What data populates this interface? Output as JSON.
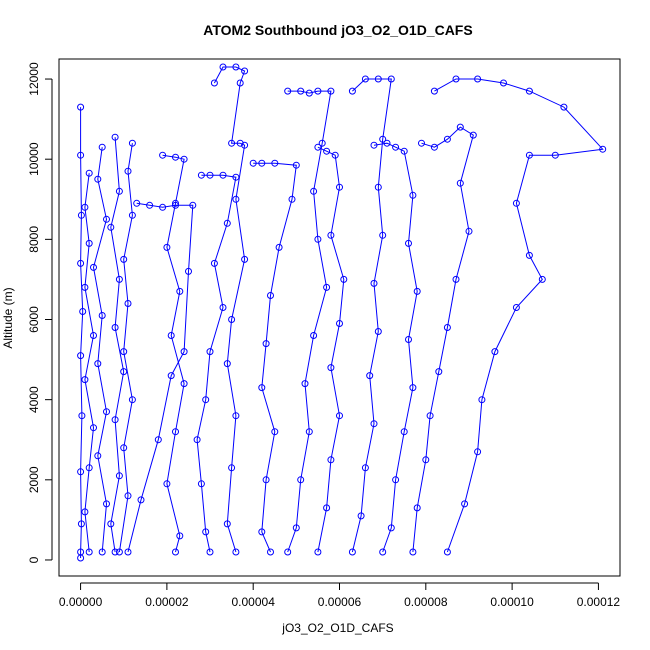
{
  "chart_data": {
    "type": "scatter",
    "title": "ATOM2 Southbound jO3_O2_O1D_CAFS",
    "xlabel": "jO3_O2_O1D_CAFS",
    "ylabel": "Altitude (m)",
    "xlim": [
      -5e-06,
      0.000125
    ],
    "ylim": [
      -400,
      12500
    ],
    "x_ticks": [
      0,
      2e-05,
      4e-05,
      6e-05,
      8e-05,
      0.0001,
      0.00012
    ],
    "x_tick_labels": [
      "0.00000",
      "0.00002",
      "0.00004",
      "0.00006",
      "0.00008",
      "0.00010",
      "0.00012"
    ],
    "y_ticks": [
      0,
      2000,
      4000,
      6000,
      8000,
      10000,
      12000
    ],
    "y_tick_labels": [
      "0",
      "2000",
      "4000",
      "6000",
      "8000",
      "10000",
      "12000"
    ],
    "marker": "open-circle",
    "color": "#0000ff",
    "series": [
      {
        "points": [
          [
            0.0,
            11300
          ],
          [
            0.0,
            10100
          ],
          [
            2e-07,
            8600
          ],
          [
            0.0,
            7400
          ],
          [
            5e-07,
            6200
          ],
          [
            0.0,
            5100
          ],
          [
            3e-07,
            3600
          ],
          [
            0.0,
            2200
          ],
          [
            2e-07,
            900
          ],
          [
            0.0,
            200
          ],
          [
            0.0,
            50
          ]
        ]
      },
      {
        "points": [
          [
            2e-06,
            9650
          ],
          [
            1e-06,
            8800
          ],
          [
            2e-06,
            7900
          ],
          [
            1e-06,
            6800
          ],
          [
            3e-06,
            5600
          ],
          [
            1e-06,
            4500
          ],
          [
            3e-06,
            3300
          ],
          [
            2e-06,
            2300
          ],
          [
            1e-06,
            1200
          ],
          [
            2e-06,
            200
          ]
        ]
      },
      {
        "points": [
          [
            5e-06,
            10300
          ],
          [
            4e-06,
            9500
          ],
          [
            6e-06,
            8500
          ],
          [
            3e-06,
            7300
          ],
          [
            5e-06,
            6100
          ],
          [
            4e-06,
            4900
          ],
          [
            6e-06,
            3700
          ],
          [
            4e-06,
            2600
          ],
          [
            6e-06,
            1400
          ],
          [
            5e-06,
            200
          ]
        ]
      },
      {
        "points": [
          [
            8e-06,
            10550
          ],
          [
            9e-06,
            9200
          ],
          [
            7e-06,
            8300
          ],
          [
            9e-06,
            7000
          ],
          [
            8e-06,
            5800
          ],
          [
            1e-05,
            4700
          ],
          [
            8e-06,
            3500
          ],
          [
            9e-06,
            2100
          ],
          [
            7e-06,
            900
          ],
          [
            8e-06,
            200
          ]
        ]
      },
      {
        "points": [
          [
            1.2e-05,
            10400
          ],
          [
            1.1e-05,
            9700
          ],
          [
            1.2e-05,
            8600
          ],
          [
            1e-05,
            7500
          ],
          [
            1.1e-05,
            6400
          ],
          [
            1e-05,
            5200
          ],
          [
            1.2e-05,
            4000
          ],
          [
            1e-05,
            2800
          ],
          [
            1.1e-05,
            1600
          ],
          [
            9e-06,
            200
          ]
        ]
      },
      {
        "points": [
          [
            1.3e-05,
            8900
          ],
          [
            1.6e-05,
            8850
          ],
          [
            1.9e-05,
            8800
          ],
          [
            2.2e-05,
            8850
          ],
          [
            2.6e-05,
            8850
          ],
          [
            2.5e-05,
            7200
          ],
          [
            2.4e-05,
            5200
          ],
          [
            2.1e-05,
            4600
          ],
          [
            1.8e-05,
            3000
          ],
          [
            1.4e-05,
            1500
          ],
          [
            1.1e-05,
            200
          ]
        ]
      },
      {
        "points": [
          [
            1.9e-05,
            10100
          ],
          [
            2.2e-05,
            10050
          ],
          [
            2.4e-05,
            10000
          ],
          [
            2.2e-05,
            8900
          ],
          [
            2e-05,
            7800
          ],
          [
            2.3e-05,
            6700
          ],
          [
            2.1e-05,
            5600
          ],
          [
            2.4e-05,
            4400
          ],
          [
            2.2e-05,
            3200
          ],
          [
            2e-05,
            1900
          ],
          [
            2.3e-05,
            600
          ],
          [
            2.2e-05,
            200
          ]
        ]
      },
      {
        "points": [
          [
            2.8e-05,
            9600
          ],
          [
            3e-05,
            9600
          ],
          [
            3.3e-05,
            9600
          ],
          [
            3.6e-05,
            9550
          ],
          [
            3.4e-05,
            8400
          ],
          [
            3.1e-05,
            7400
          ],
          [
            3.3e-05,
            6300
          ],
          [
            3e-05,
            5200
          ],
          [
            2.9e-05,
            4000
          ],
          [
            2.7e-05,
            3000
          ],
          [
            2.8e-05,
            1900
          ],
          [
            2.9e-05,
            700
          ],
          [
            3e-05,
            200
          ]
        ]
      },
      {
        "points": [
          [
            3.1e-05,
            11900
          ],
          [
            3.3e-05,
            12300
          ],
          [
            3.6e-05,
            12300
          ],
          [
            3.8e-05,
            12200
          ],
          [
            3.7e-05,
            11900
          ],
          [
            3.5e-05,
            10400
          ],
          [
            3.7e-05,
            10400
          ],
          [
            3.8e-05,
            10350
          ],
          [
            3.6e-05,
            9000
          ],
          [
            3.8e-05,
            7500
          ],
          [
            3.5e-05,
            6000
          ],
          [
            3.4e-05,
            4900
          ],
          [
            3.6e-05,
            3600
          ],
          [
            3.5e-05,
            2300
          ],
          [
            3.4e-05,
            900
          ],
          [
            3.6e-05,
            200
          ]
        ]
      },
      {
        "points": [
          [
            4e-05,
            9900
          ],
          [
            4.2e-05,
            9900
          ],
          [
            4.5e-05,
            9900
          ],
          [
            5e-05,
            9850
          ],
          [
            4.9e-05,
            9000
          ],
          [
            4.6e-05,
            7800
          ],
          [
            4.4e-05,
            6600
          ],
          [
            4.3e-05,
            5400
          ],
          [
            4.2e-05,
            4300
          ],
          [
            4.5e-05,
            3200
          ],
          [
            4.3e-05,
            2000
          ],
          [
            4.2e-05,
            700
          ],
          [
            4.4e-05,
            200
          ]
        ]
      },
      {
        "points": [
          [
            4.8e-05,
            11700
          ],
          [
            5.1e-05,
            11700
          ],
          [
            5.3e-05,
            11650
          ],
          [
            5.5e-05,
            11700
          ],
          [
            5.8e-05,
            11700
          ],
          [
            5.6e-05,
            10400
          ],
          [
            5.4e-05,
            9200
          ],
          [
            5.5e-05,
            8000
          ],
          [
            5.7e-05,
            6800
          ],
          [
            5.4e-05,
            5600
          ],
          [
            5.2e-05,
            4400
          ],
          [
            5.3e-05,
            3200
          ],
          [
            5.1e-05,
            2000
          ],
          [
            5e-05,
            800
          ],
          [
            4.8e-05,
            200
          ]
        ]
      },
      {
        "points": [
          [
            5.5e-05,
            10300
          ],
          [
            5.7e-05,
            10200
          ],
          [
            5.9e-05,
            10100
          ],
          [
            6e-05,
            9300
          ],
          [
            5.8e-05,
            8100
          ],
          [
            6.1e-05,
            7000
          ],
          [
            6e-05,
            5900
          ],
          [
            5.8e-05,
            4800
          ],
          [
            6e-05,
            3600
          ],
          [
            5.8e-05,
            2500
          ],
          [
            5.7e-05,
            1300
          ],
          [
            5.5e-05,
            200
          ]
        ]
      },
      {
        "points": [
          [
            6.3e-05,
            11700
          ],
          [
            6.6e-05,
            12000
          ],
          [
            6.9e-05,
            12000
          ],
          [
            7.2e-05,
            12000
          ],
          [
            7e-05,
            10500
          ],
          [
            6.9e-05,
            9300
          ],
          [
            7e-05,
            8100
          ],
          [
            6.8e-05,
            6900
          ],
          [
            6.9e-05,
            5700
          ],
          [
            6.7e-05,
            4600
          ],
          [
            6.8e-05,
            3400
          ],
          [
            6.6e-05,
            2300
          ],
          [
            6.5e-05,
            1100
          ],
          [
            6.3e-05,
            200
          ]
        ]
      },
      {
        "points": [
          [
            6.8e-05,
            10350
          ],
          [
            7.1e-05,
            10400
          ],
          [
            7.3e-05,
            10300
          ],
          [
            7.5e-05,
            10200
          ],
          [
            7.7e-05,
            9100
          ],
          [
            7.6e-05,
            7900
          ],
          [
            7.8e-05,
            6700
          ],
          [
            7.6e-05,
            5500
          ],
          [
            7.7e-05,
            4300
          ],
          [
            7.5e-05,
            3200
          ],
          [
            7.3e-05,
            2000
          ],
          [
            7.2e-05,
            800
          ],
          [
            7e-05,
            200
          ]
        ]
      },
      {
        "points": [
          [
            7.9e-05,
            10400
          ],
          [
            8.2e-05,
            10300
          ],
          [
            8.5e-05,
            10500
          ],
          [
            8.8e-05,
            10800
          ],
          [
            9.1e-05,
            10600
          ],
          [
            8.8e-05,
            9400
          ],
          [
            9e-05,
            8200
          ],
          [
            8.7e-05,
            7000
          ],
          [
            8.5e-05,
            5800
          ],
          [
            8.3e-05,
            4700
          ],
          [
            8.1e-05,
            3600
          ],
          [
            8e-05,
            2500
          ],
          [
            7.8e-05,
            1300
          ],
          [
            7.7e-05,
            200
          ]
        ]
      },
      {
        "points": [
          [
            8.2e-05,
            11700
          ],
          [
            8.7e-05,
            12000
          ],
          [
            9.2e-05,
            12000
          ],
          [
            9.8e-05,
            11900
          ],
          [
            0.000104,
            11700
          ],
          [
            0.000112,
            11300
          ],
          [
            0.000121,
            10250
          ],
          [
            0.00011,
            10100
          ],
          [
            0.000104,
            10100
          ],
          [
            0.000101,
            8900
          ],
          [
            0.000104,
            7600
          ],
          [
            0.000107,
            7000
          ],
          [
            0.000101,
            6300
          ],
          [
            9.6e-05,
            5200
          ],
          [
            9.3e-05,
            4000
          ],
          [
            9.2e-05,
            2700
          ],
          [
            8.9e-05,
            1400
          ],
          [
            8.5e-05,
            200
          ]
        ]
      }
    ]
  }
}
